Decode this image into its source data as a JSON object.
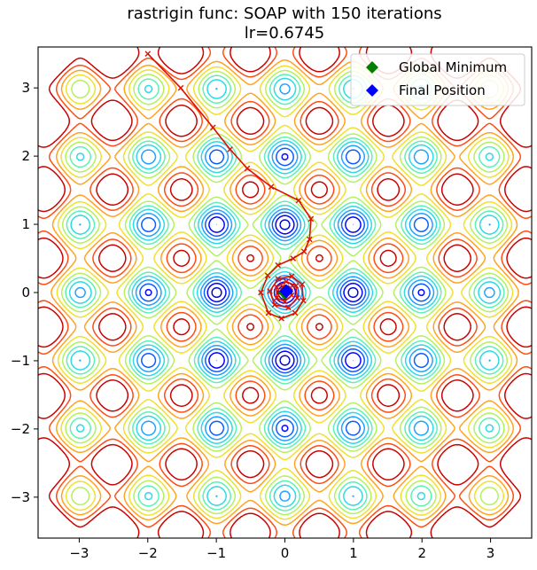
{
  "chart_data": {
    "type": "contour",
    "title": "rastrigin func: SOAP with 150 iterations",
    "subtitle": "lr=0.6745",
    "xlabel": "",
    "ylabel": "",
    "xlim": [
      -3.6,
      3.6
    ],
    "ylim": [
      -3.6,
      3.6
    ],
    "x_ticks": [
      -3,
      -2,
      -1,
      0,
      1,
      2,
      3
    ],
    "x_tick_labels": [
      "−3",
      "−2",
      "−1",
      "0",
      "1",
      "2",
      "3"
    ],
    "y_ticks": [
      -3,
      -2,
      -1,
      0,
      1,
      2,
      3
    ],
    "y_tick_labels": [
      "−3",
      "−2",
      "−1",
      "0",
      "1",
      "2",
      "3"
    ],
    "grid": false,
    "colormap": "jet",
    "contour_levels": [
      2,
      4.4,
      7,
      10,
      13.5,
      17,
      21,
      25.5,
      30,
      35,
      40
    ],
    "contour_colors": [
      "#0000c8",
      "#0000ff",
      "#0a5aff",
      "#1ea0ff",
      "#2ad9e6",
      "#5cf0b4",
      "#b4f05a",
      "#f0e02a",
      "#ffa21e",
      "#ff4a12",
      "#c80000"
    ],
    "trajectory": {
      "color": "#dd1100",
      "marker": "x",
      "points": [
        [
          -2.0,
          3.5
        ],
        [
          -1.52,
          3.0
        ],
        [
          -1.05,
          2.42
        ],
        [
          -0.8,
          2.1
        ],
        [
          -0.55,
          1.82
        ],
        [
          -0.2,
          1.55
        ],
        [
          0.2,
          1.35
        ],
        [
          0.38,
          1.08
        ],
        [
          0.36,
          0.78
        ],
        [
          0.28,
          0.6
        ],
        [
          0.12,
          0.5
        ],
        [
          -0.1,
          0.4
        ],
        [
          -0.25,
          0.25
        ],
        [
          -0.35,
          0.0
        ],
        [
          -0.24,
          -0.3
        ],
        [
          -0.05,
          -0.38
        ],
        [
          0.15,
          -0.3
        ],
        [
          0.27,
          -0.12
        ],
        [
          0.25,
          0.12
        ],
        [
          0.1,
          0.24
        ],
        [
          -0.1,
          0.2
        ],
        [
          -0.22,
          0.02
        ],
        [
          -0.15,
          -0.18
        ],
        [
          0.05,
          -0.22
        ],
        [
          0.18,
          -0.08
        ],
        [
          0.16,
          0.1
        ],
        [
          0.02,
          0.16
        ],
        [
          -0.12,
          0.08
        ],
        [
          -0.12,
          -0.08
        ],
        [
          0.0,
          -0.13
        ],
        [
          0.1,
          -0.04
        ],
        [
          0.08,
          0.07
        ],
        [
          -0.03,
          0.08
        ],
        [
          -0.06,
          0.0
        ],
        [
          0.0,
          -0.04
        ],
        [
          0.02,
          0.02
        ]
      ]
    },
    "points": [
      {
        "name": "Global Minimum",
        "x": 0,
        "y": 0,
        "marker": "diamond",
        "color": "#008000"
      },
      {
        "name": "Final Position",
        "x": 0.02,
        "y": 0.02,
        "marker": "diamond",
        "color": "#0000ff"
      }
    ],
    "legend": {
      "placement": "top-right",
      "entries": [
        {
          "label": "Global Minimum",
          "color": "#008000"
        },
        {
          "label": "Final Position",
          "color": "#0000ff"
        }
      ]
    }
  }
}
